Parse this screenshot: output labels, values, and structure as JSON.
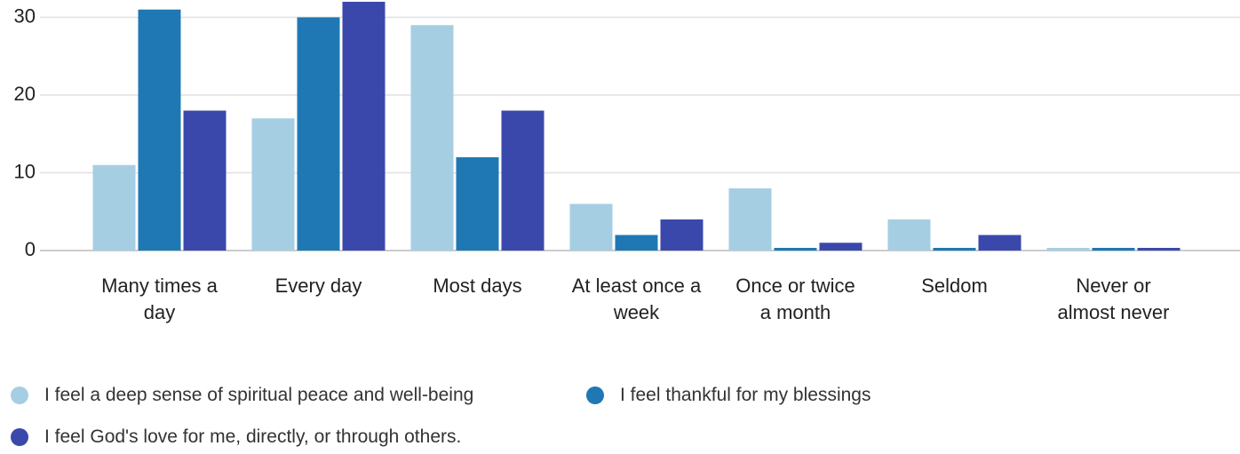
{
  "chart_data": {
    "type": "bar",
    "categories": [
      "Many times a day",
      "Every day",
      "Most days",
      "At least once a week",
      "Once or twice a month",
      "Seldom",
      "Never or almost never"
    ],
    "series": [
      {
        "name": "I feel a deep sense of spiritual peace and well-being",
        "color": "#a6cee3",
        "values": [
          11,
          17,
          29,
          6,
          8,
          4,
          0
        ]
      },
      {
        "name": "I feel thankful for my blessings",
        "color": "#1f78b4",
        "values": [
          31,
          30,
          12,
          2,
          0,
          0,
          0
        ]
      },
      {
        "name": "I feel God's love for me, directly, or through others.",
        "color": "#3b48ab",
        "values": [
          18,
          32,
          18,
          4,
          1,
          2,
          0
        ]
      }
    ],
    "ylim": [
      0,
      32
    ],
    "yticks": [
      0,
      10,
      20,
      30
    ],
    "grid": true,
    "legend": "bottom"
  }
}
